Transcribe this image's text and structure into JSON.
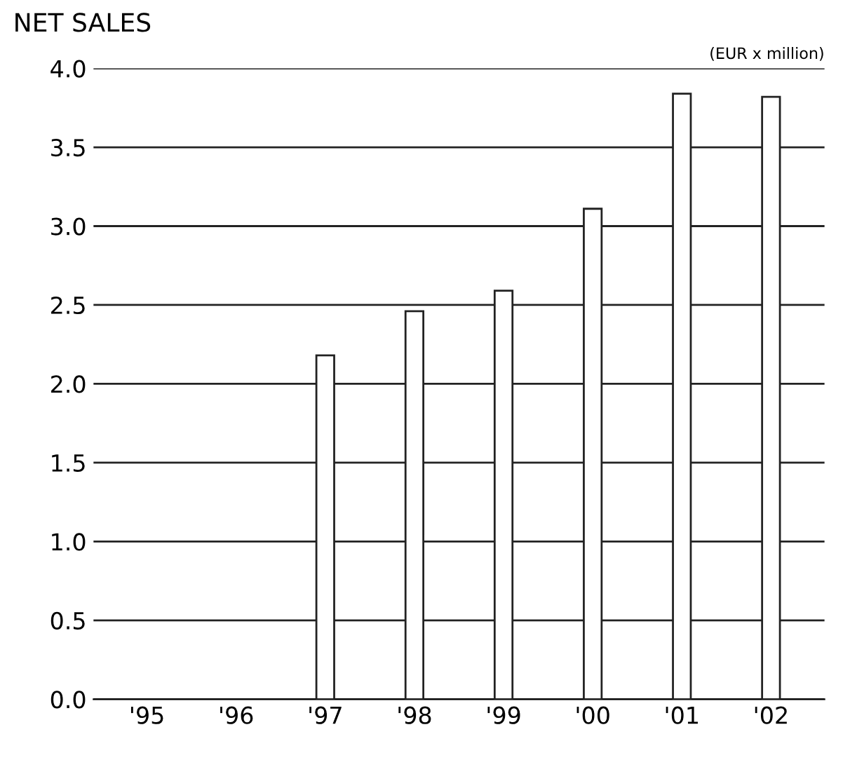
{
  "chart_data": {
    "type": "bar",
    "title": "NET SALES",
    "annotations": [
      "(EUR x million)"
    ],
    "categories": [
      "'95",
      "'96",
      "'97",
      "'98",
      "'99",
      "'00",
      "'01",
      "'02"
    ],
    "values": [
      null,
      null,
      2.18,
      2.46,
      2.59,
      3.11,
      3.84,
      3.82
    ],
    "color": "#ffffff",
    "ylim": [
      0,
      4.0
    ],
    "yticks": [
      {
        "value": 0,
        "label": "0.0"
      },
      0.5,
      {
        "value": 1,
        "label": "1.0"
      },
      1.5,
      {
        "value": 2,
        "label": "2.0"
      },
      2.5,
      {
        "value": 3,
        "label": "3.0"
      },
      3.5,
      {
        "value": 4,
        "label": "4.0"
      }
    ],
    "grid": "y"
  }
}
